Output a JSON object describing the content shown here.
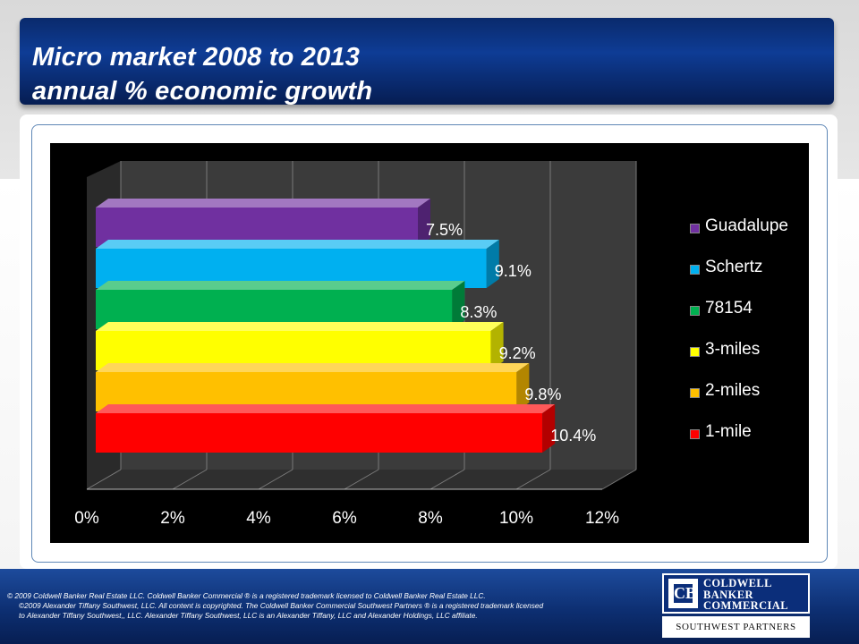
{
  "slide": {
    "title_line1": "Micro market 2008 to 2013",
    "title_line2": "annual % economic growth"
  },
  "chart_data": {
    "type": "bar",
    "orientation": "horizontal",
    "style": "3d-clustered",
    "categories": [
      "Guadalupe",
      "Schertz",
      "78154",
      "3-miles",
      "2-miles",
      "1-mile"
    ],
    "values": [
      7.5,
      9.1,
      8.3,
      9.2,
      9.8,
      10.4
    ],
    "data_labels": [
      "7.5%",
      "9.1%",
      "8.3%",
      "9.2%",
      "9.8%",
      "10.4%"
    ],
    "series_colors": [
      "#7030a0",
      "#00b0f0",
      "#00b050",
      "#ffff00",
      "#ffc000",
      "#ff0000"
    ],
    "xlim": [
      0,
      12
    ],
    "x_ticks": [
      0,
      2,
      4,
      6,
      8,
      10,
      12
    ],
    "x_tick_labels": [
      "0%",
      "2%",
      "4%",
      "6%",
      "8%",
      "10%",
      "12%"
    ],
    "legend_order": [
      "Guadalupe",
      "Schertz",
      "78154",
      "3-miles",
      "2-miles",
      "1-mile"
    ],
    "legend_position": "right",
    "background": "#000000",
    "grid": true
  },
  "footer": {
    "line1": "©  2009 Coldwell Banker Real Estate LLC. Coldwell Banker Commercial ® is a registered trademark licensed to Coldwell Banker Real Estate LLC.",
    "line2": "©2009 Alexander Tiffany Southwest, LLC. All content is copyrighted. The Coldwell Banker Commercial Southwest Partners ® is a registered trademark licensed",
    "line3": "to Alexander Tiffany Southwest,, LLC.  Alexander Tiffany Southwest, LLC is an Alexander Tiffany, LLC and Alexander Holdings, LLC affiliate."
  },
  "logo": {
    "mark": "CB",
    "word1": "COLDWELL",
    "word2": "BANKER",
    "word3": "COMMERCIAL",
    "subtitle": "SOUTHWEST PARTNERS"
  }
}
